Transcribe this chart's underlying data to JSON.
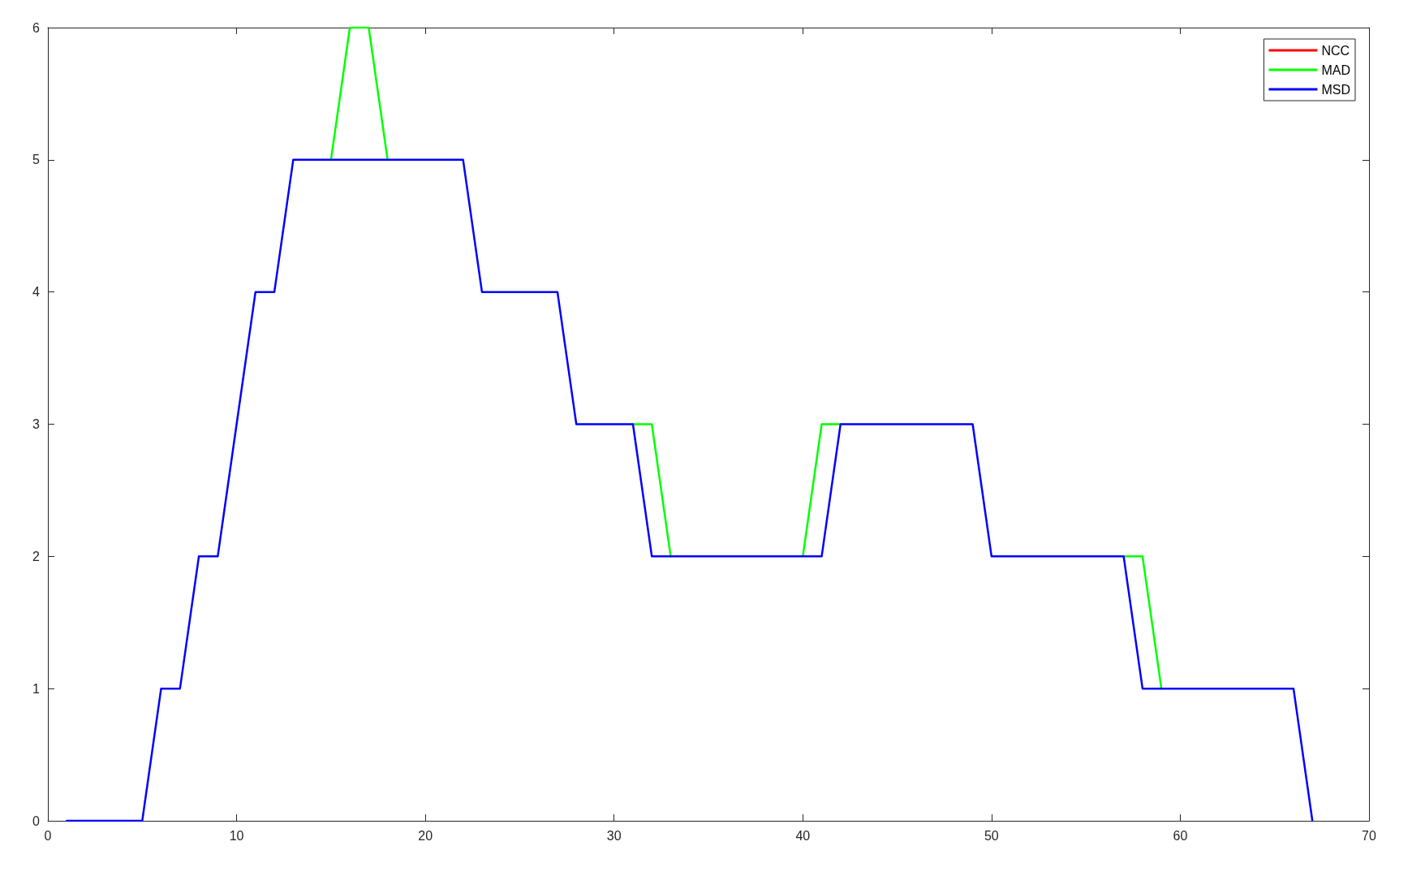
{
  "chart_data": {
    "type": "line",
    "x": [
      1,
      2,
      3,
      4,
      5,
      6,
      7,
      8,
      9,
      10,
      11,
      12,
      13,
      14,
      15,
      16,
      17,
      18,
      19,
      20,
      21,
      22,
      23,
      24,
      25,
      26,
      27,
      28,
      29,
      30,
      31,
      32,
      33,
      34,
      35,
      36,
      37,
      38,
      39,
      40,
      41,
      42,
      43,
      44,
      45,
      46,
      47,
      48,
      49,
      50,
      51,
      52,
      53,
      54,
      55,
      56,
      57,
      58,
      59,
      60,
      61,
      62,
      63,
      64,
      65,
      66,
      67
    ],
    "series": [
      {
        "name": "NCC",
        "color": "#ff0000",
        "values": [
          null,
          null,
          null,
          null,
          null,
          null,
          null,
          null,
          null,
          null,
          null,
          null,
          null,
          null,
          null,
          null,
          null,
          null,
          null,
          null,
          null,
          null,
          null,
          null,
          null,
          null,
          null,
          null,
          null,
          null,
          null,
          null,
          null,
          null,
          null,
          null,
          null,
          null,
          null,
          null,
          null,
          null,
          null,
          null,
          null,
          null,
          null,
          null,
          null,
          null,
          null,
          null,
          null,
          null,
          null,
          null,
          null,
          null,
          null,
          null,
          null,
          null,
          null,
          null,
          null,
          null,
          null
        ]
      },
      {
        "name": "MAD",
        "color": "#00ff00",
        "values": [
          null,
          null,
          null,
          null,
          null,
          null,
          null,
          null,
          null,
          null,
          null,
          null,
          null,
          null,
          5,
          6,
          6,
          5,
          null,
          null,
          null,
          null,
          null,
          null,
          null,
          null,
          null,
          null,
          null,
          null,
          3,
          3,
          2,
          null,
          null,
          null,
          null,
          null,
          null,
          2,
          3,
          3,
          null,
          null,
          null,
          null,
          null,
          null,
          null,
          null,
          null,
          null,
          null,
          null,
          null,
          null,
          2,
          2,
          1,
          null,
          null,
          null,
          null,
          null,
          null,
          null,
          null
        ]
      },
      {
        "name": "MSD",
        "color": "#0000ff",
        "values": [
          0,
          0,
          0,
          0,
          0,
          1,
          1,
          2,
          2,
          3,
          4,
          4,
          5,
          5,
          5,
          5,
          5,
          5,
          5,
          5,
          5,
          5,
          4,
          4,
          4,
          4,
          4,
          3,
          3,
          3,
          3,
          2,
          2,
          2,
          2,
          2,
          2,
          2,
          2,
          2,
          2,
          3,
          3,
          3,
          3,
          3,
          3,
          3,
          3,
          2,
          2,
          2,
          2,
          2,
          2,
          2,
          2,
          1,
          1,
          1,
          1,
          1,
          1,
          1,
          1,
          1,
          0
        ]
      }
    ],
    "xlim": [
      0,
      70
    ],
    "xticks": [
      0,
      10,
      20,
      30,
      40,
      50,
      60,
      70
    ],
    "ylim": [
      0,
      6
    ],
    "yticks": [
      0,
      1,
      2,
      3,
      4,
      5,
      6
    ],
    "grid": false,
    "legend": "top right",
    "marker": "none",
    "line_style": "solid"
  }
}
